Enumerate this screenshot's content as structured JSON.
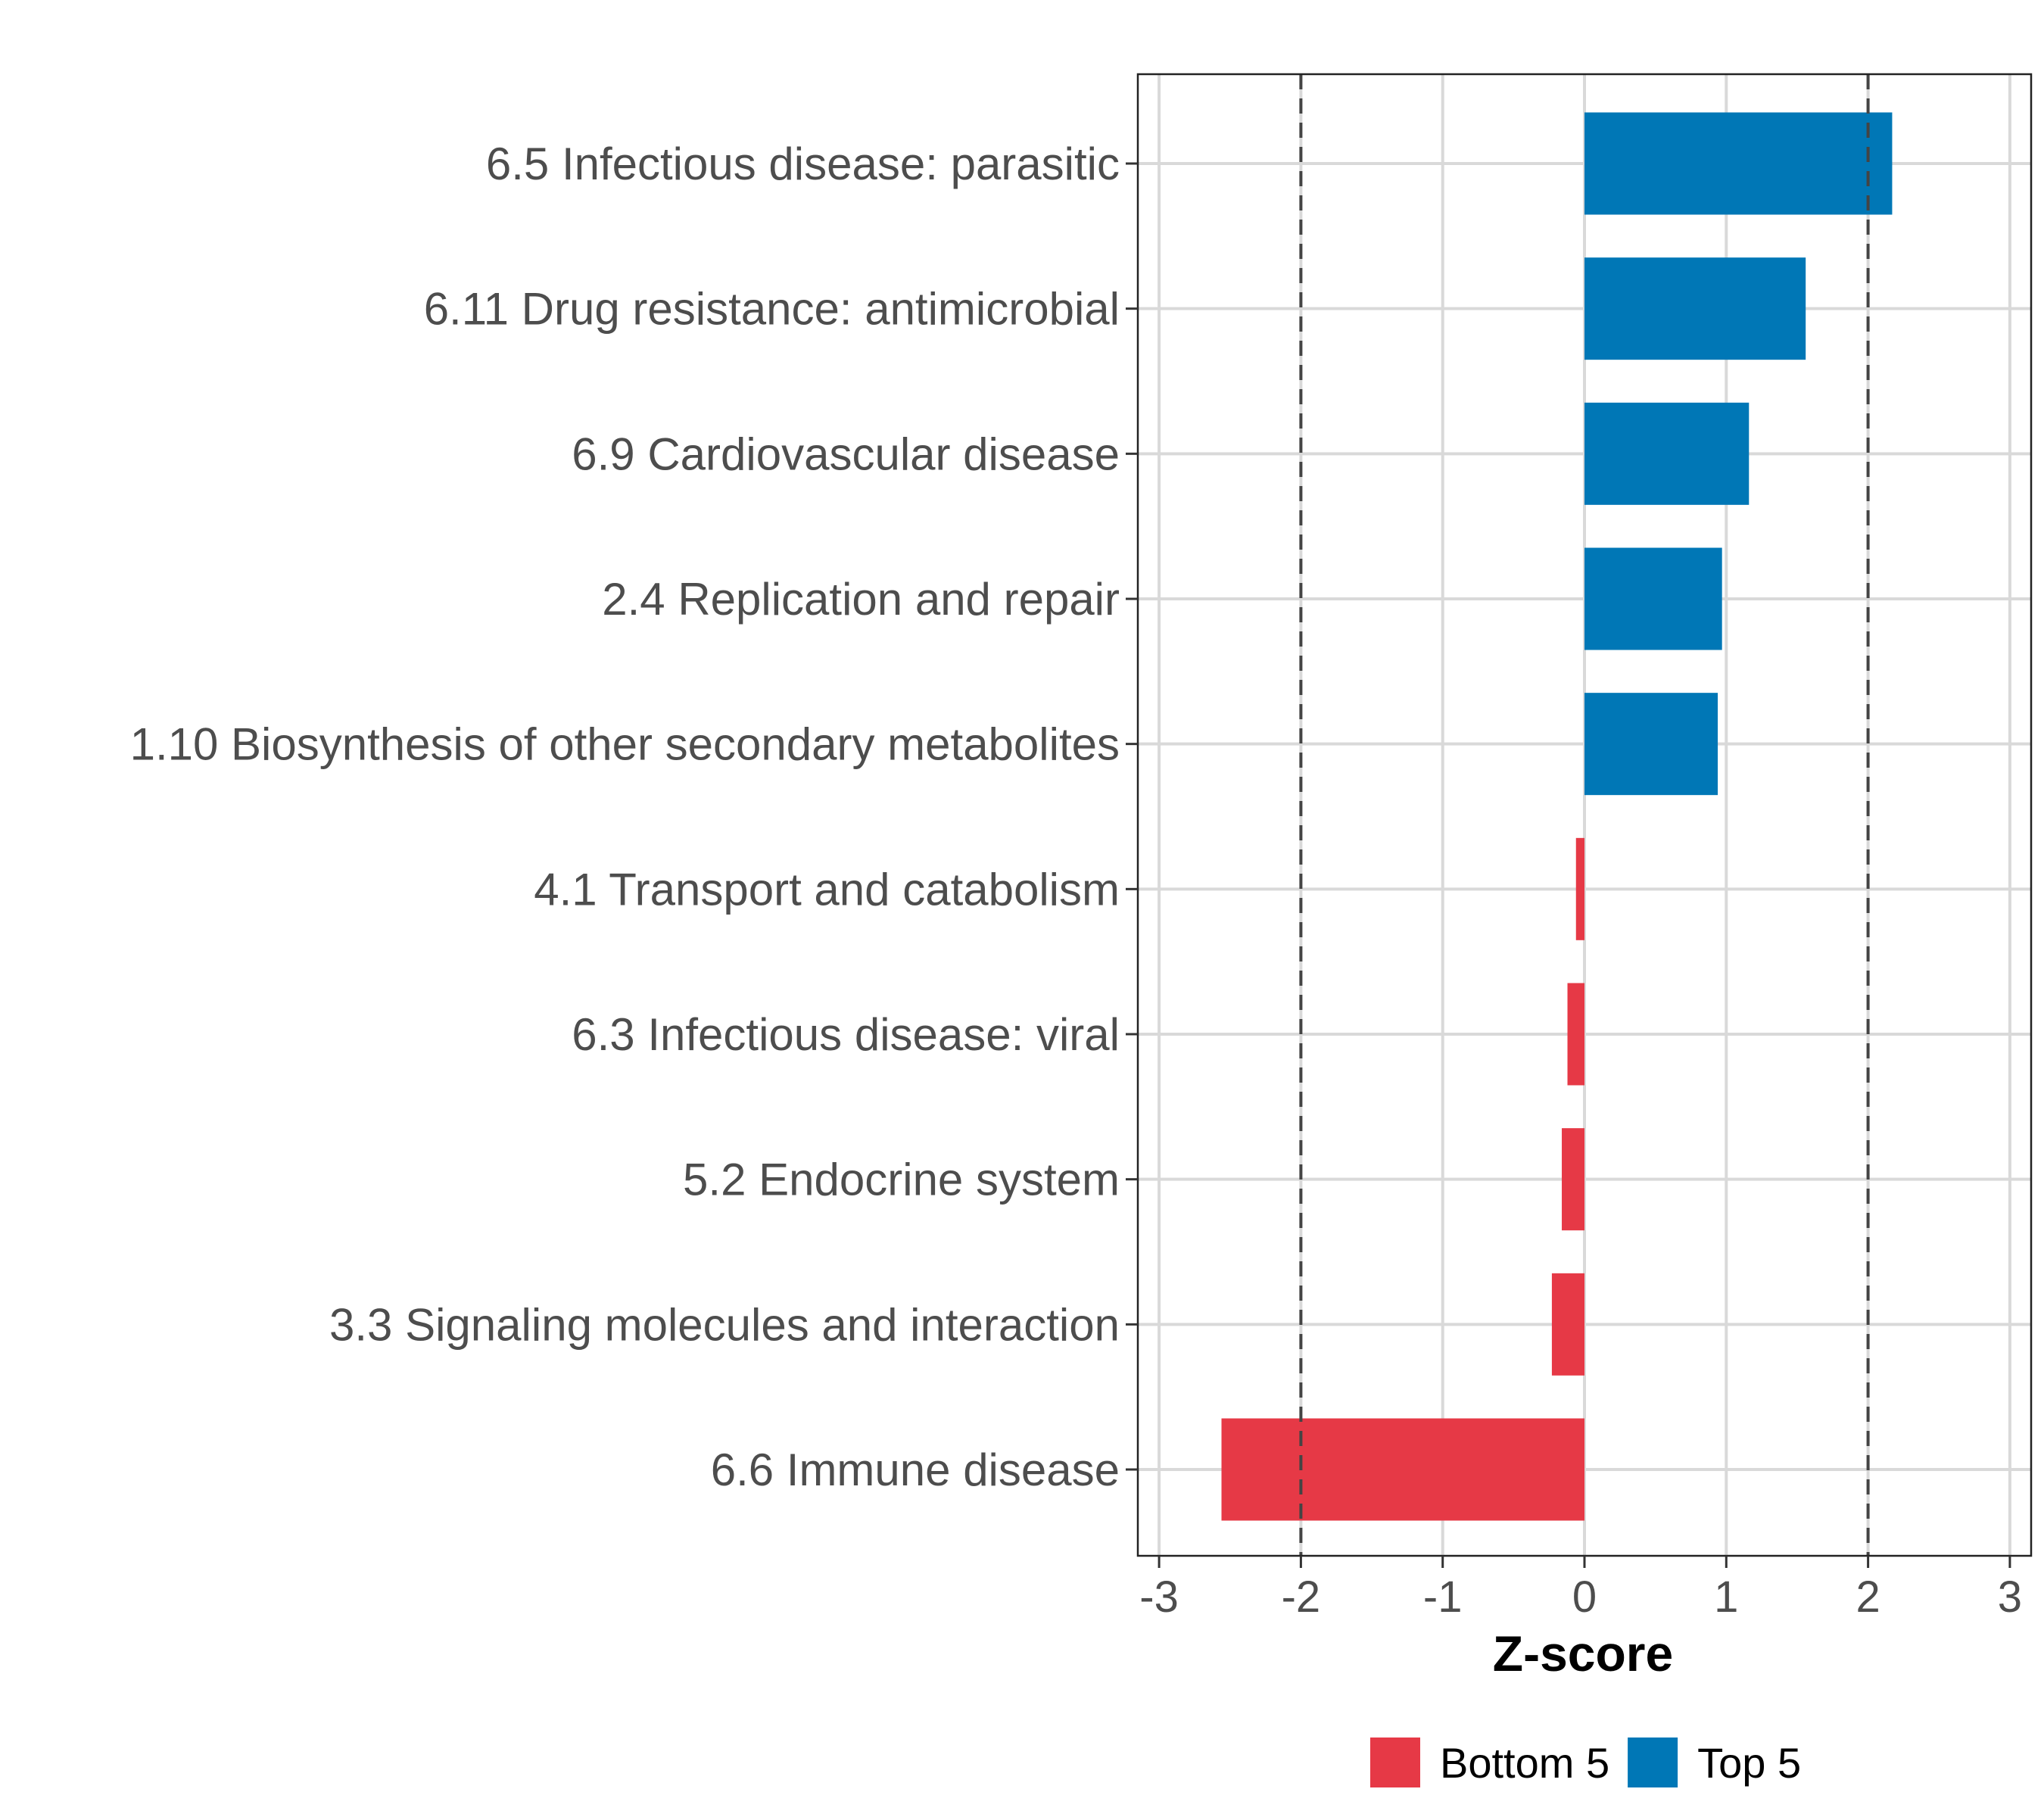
{
  "chart_data": {
    "type": "bar",
    "orientation": "horizontal",
    "title": "",
    "xlabel": "Z-score",
    "ylabel": "",
    "xlim": [
      -3.15,
      3.15
    ],
    "xticks": [
      -3,
      -2,
      -1,
      0,
      1,
      2,
      3
    ],
    "xtick_labels": [
      "-3",
      "-2",
      "-1",
      "0",
      "1",
      "2",
      "3"
    ],
    "grid": true,
    "reference_lines": [
      -2,
      2
    ],
    "categories": [
      "6.5 Infectious disease: parasitic",
      "6.11 Drug resistance: antimicrobial",
      "6.9 Cardiovascular disease",
      "2.4 Replication and repair",
      "1.10 Biosynthesis of other secondary metabolites",
      "4.1 Transport and catabolism",
      "6.3 Infectious disease: viral",
      "5.2 Endocrine system",
      "3.3 Signaling molecules and interaction",
      "6.6 Immune disease"
    ],
    "values": [
      2.17,
      1.56,
      1.16,
      0.97,
      0.94,
      -0.06,
      -0.12,
      -0.16,
      -0.23,
      -2.56
    ],
    "groups": [
      "Top 5",
      "Top 5",
      "Top 5",
      "Top 5",
      "Top 5",
      "Bottom 5",
      "Bottom 5",
      "Bottom 5",
      "Bottom 5",
      "Bottom 5"
    ],
    "legend": {
      "position": "bottom",
      "entries": [
        {
          "label": "Bottom 5",
          "color": "#E63946"
        },
        {
          "label": "Top 5",
          "color": "#0077B6"
        }
      ]
    },
    "colors": {
      "Top 5": "#0077B6",
      "Bottom 5": "#E63946"
    }
  }
}
